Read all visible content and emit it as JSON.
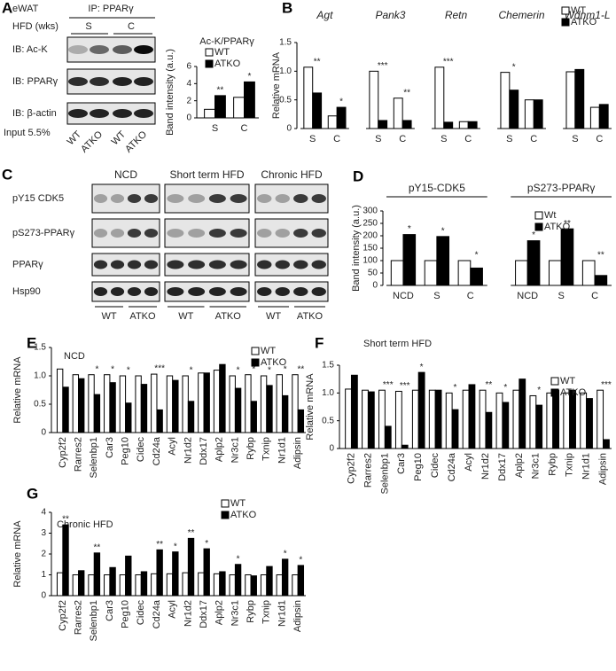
{
  "panel_labels": [
    "A",
    "B",
    "C",
    "D",
    "E",
    "F",
    "G"
  ],
  "blot_a": {
    "tissue": "eWAT",
    "ip": "IP: PPARγ",
    "hfd": "HFD (wks)",
    "conditions": [
      "S",
      "C"
    ],
    "rows": [
      "IB: Ac-K",
      "IB: PPARγ",
      "IB: β-actin"
    ],
    "input": "Input 5.5%",
    "lanes": [
      "WT",
      "ATKO",
      "WT",
      "ATKO"
    ]
  },
  "blot_c": {
    "conditions": [
      "NCD",
      "Short term HFD",
      "Chronic HFD"
    ],
    "rows": [
      "pY15 CDK5",
      "pS273-PPARγ",
      "PPARγ",
      "Hsp90"
    ],
    "genotypes": [
      "WT",
      "ATKO"
    ]
  },
  "chart_data": [
    {
      "type": "bar",
      "title": "Ac-K/PPARγ",
      "ylabel": "Band intensity (a.u.)",
      "categories": [
        "S",
        "C"
      ],
      "series": [
        {
          "name": "WT",
          "color": "#ffffff",
          "values": [
            1.0,
            2.4
          ]
        },
        {
          "name": "ATKO",
          "color": "#000000",
          "values": [
            2.6,
            4.2
          ],
          "significance": [
            "**",
            "*"
          ]
        }
      ],
      "ylim": [
        0,
        6
      ],
      "yticks": [
        0,
        2,
        4,
        6
      ]
    },
    {
      "type": "bar",
      "ylabel": "Relative mRNA",
      "groups": [
        "Agt",
        "Pank3",
        "Retn",
        "Chemerin",
        "Wdnm1-L"
      ],
      "categories": [
        "S",
        "C",
        "S",
        "C",
        "S",
        "C",
        "S",
        "C",
        "S",
        "C"
      ],
      "series": [
        {
          "name": "WT",
          "color": "#ffffff",
          "values": [
            1.07,
            0.22,
            1.0,
            0.53,
            1.07,
            0.12,
            0.98,
            0.5,
            0.99,
            0.37
          ]
        },
        {
          "name": "ATKO",
          "color": "#000000",
          "values": [
            0.62,
            0.37,
            0.14,
            0.14,
            0.11,
            0.12,
            0.67,
            0.5,
            1.03,
            0.42
          ],
          "significance": [
            "**",
            "*",
            "***",
            "**",
            "***",
            null,
            "*",
            null,
            null,
            null
          ]
        }
      ],
      "ylim": [
        0,
        1.5
      ],
      "yticks": [
        0,
        0.5,
        {
          "value": 1,
          "label": "1.0"
        },
        1.5
      ]
    },
    {
      "type": "bar",
      "ylabel": "Band intensity (a.u.)",
      "groups": [
        "pY15-CDK5",
        "pS273-PPARγ"
      ],
      "categories": [
        "NCD",
        "S",
        "C",
        "NCD",
        "S",
        "C"
      ],
      "series": [
        {
          "name": "Wt",
          "color": "#ffffff",
          "values": [
            100,
            100,
            100,
            100,
            100,
            100
          ]
        },
        {
          "name": "ATKO",
          "color": "#000000",
          "values": [
            205,
            197,
            70,
            180,
            228,
            40
          ],
          "significance": [
            "*",
            "*",
            "*",
            "*",
            "**",
            "**"
          ]
        }
      ],
      "ylim": [
        0,
        300
      ],
      "yticks": [
        0,
        50,
        100,
        150,
        200,
        250,
        300
      ]
    },
    {
      "type": "bar",
      "title": "NCD",
      "ylabel": "Relative mRNA",
      "categories": [
        "Cyp2f2",
        "Rarres2",
        "Selenbp1",
        "Car3",
        "Peg10",
        "Cidec",
        "Cd24a",
        "Acyl",
        "Nr1d2",
        "Ddx17",
        "Aplp2",
        "Nr3c1",
        "Rybp",
        "Txnip",
        "Nr1d1",
        "Adipsin"
      ],
      "series": [
        {
          "name": "WT",
          "color": "#ffffff",
          "values": [
            1.12,
            1.02,
            1.02,
            1.02,
            1.0,
            1.0,
            1.03,
            1.0,
            1.0,
            1.05,
            1.1,
            1.0,
            1.02,
            1.0,
            1.02,
            1.02
          ]
        },
        {
          "name": "ATKO",
          "color": "#000000",
          "values": [
            0.8,
            0.95,
            0.67,
            0.88,
            0.52,
            0.85,
            0.4,
            0.92,
            0.55,
            1.05,
            1.2,
            0.78,
            0.55,
            0.83,
            0.65,
            0.4
          ],
          "significance": [
            null,
            null,
            "*",
            "*",
            "*",
            null,
            "***",
            null,
            "*",
            null,
            null,
            "*",
            "*",
            "*",
            "*",
            "**"
          ]
        }
      ],
      "ylim": [
        0,
        1.5
      ],
      "yticks": [
        0,
        0.5,
        {
          "value": 1,
          "label": "1.0"
        },
        1.5
      ]
    },
    {
      "type": "bar",
      "title": "Short term HFD",
      "ylabel": "Relative mRNA",
      "categories": [
        "Cyp2f2",
        "Rarres2",
        "Selenbp1",
        "Car3",
        "Peg10",
        "Cidec",
        "Cd24a",
        "Acyl",
        "Nr1d2",
        "Ddx17",
        "Aplp2",
        "Nr3c1",
        "Rybp",
        "Txnip",
        "Nr1d1",
        "Adipsin"
      ],
      "series": [
        {
          "name": "WT",
          "color": "#ffffff",
          "values": [
            1.07,
            1.05,
            1.05,
            1.03,
            1.05,
            1.05,
            1.0,
            1.05,
            1.05,
            1.0,
            1.05,
            0.95,
            1.0,
            1.0,
            1.0,
            1.05
          ]
        },
        {
          "name": "ATKO",
          "color": "#000000",
          "values": [
            1.32,
            1.02,
            0.4,
            0.06,
            1.37,
            1.05,
            0.7,
            1.15,
            0.65,
            0.83,
            1.25,
            0.78,
            1.05,
            1.05,
            0.9,
            0.16
          ],
          "significance": [
            null,
            null,
            "***",
            "***",
            "*",
            null,
            "*",
            null,
            "**",
            "*",
            null,
            "*",
            null,
            null,
            null,
            "***"
          ]
        }
      ],
      "ylim": [
        0,
        1.5
      ],
      "yticks": [
        0,
        0.5,
        {
          "value": 1,
          "label": "1.0"
        },
        1.5
      ]
    },
    {
      "type": "bar",
      "title": "Chronic HFD",
      "ylabel": "Relative mRNA",
      "categories": [
        "Cyp2f2",
        "Rarres2",
        "Selenbp1",
        "Car3",
        "Peg10",
        "Cidec",
        "Cd24a",
        "Acyl",
        "Nr1d2",
        "Ddx17",
        "Aplp2",
        "Nr3c1",
        "Rybp",
        "Txnip",
        "Nr1d1",
        "Adipsin"
      ],
      "series": [
        {
          "name": "WT",
          "color": "#ffffff",
          "values": [
            1.1,
            1.0,
            1.0,
            1.0,
            1.0,
            1.0,
            1.05,
            1.05,
            1.1,
            1.1,
            1.05,
            1.0,
            1.0,
            1.0,
            1.0,
            1.0
          ]
        },
        {
          "name": "ATKO",
          "color": "#000000",
          "values": [
            3.4,
            1.2,
            2.05,
            1.35,
            1.9,
            1.15,
            2.2,
            2.1,
            2.75,
            2.25,
            1.15,
            1.5,
            0.95,
            1.4,
            1.75,
            1.45
          ],
          "significance": [
            "**",
            null,
            "**",
            null,
            null,
            null,
            "**",
            "*",
            "**",
            "*",
            null,
            "*",
            null,
            null,
            "*",
            "*"
          ]
        }
      ],
      "ylim": [
        0,
        4
      ],
      "yticks": [
        0,
        1,
        2,
        3,
        4
      ]
    }
  ]
}
